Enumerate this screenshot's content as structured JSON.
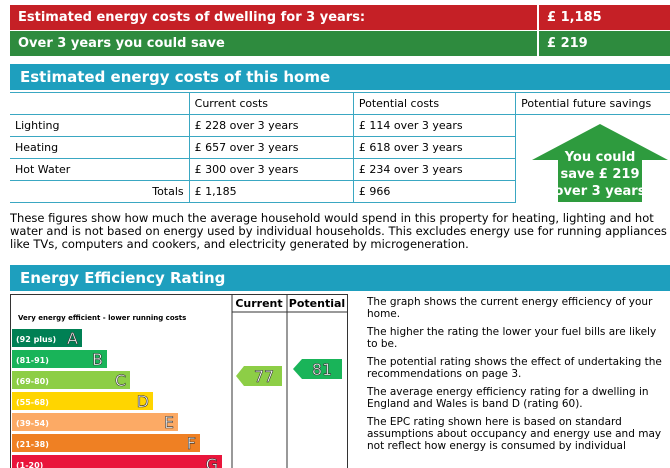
{
  "summary": {
    "cost_label": "Estimated energy costs of dwelling for 3 years:",
    "cost_value": "£ 1,185",
    "save_label": "Over 3 years you could save",
    "save_value": "£ 219"
  },
  "costs": {
    "title": "Estimated energy costs of this home",
    "columns": [
      "Current costs",
      "Potential costs",
      "Potential future savings"
    ],
    "rows": [
      [
        "Lighting",
        "£ 228 over 3 years",
        "£ 114 over 3 years"
      ],
      [
        "Heating",
        "£ 657 over 3 years",
        "£ 618 over 3 years"
      ],
      [
        "Hot Water",
        "£ 300 over 3 years",
        "£ 234 over 3 years"
      ]
    ],
    "totals": [
      "Totals",
      "£ 1,185",
      "£ 966"
    ],
    "savings_note": [
      "You could",
      "save £ 219",
      "over 3 years"
    ],
    "note": "These figures show how much the average household would spend in this property for heating, lighting and hot water and is not based on energy used by individual households. This excludes energy use for running appliances like TVs, computers and cookers, and electricity generated by microgeneration."
  },
  "rating": {
    "title": "Energy Efficiency Rating",
    "columns": [
      "Current",
      "Potential"
    ],
    "top_note": "Very energy efficient - lower running costs",
    "bands": [
      {
        "range": "(92 plus)",
        "letter": "A"
      },
      {
        "range": "(81-91)",
        "letter": "B"
      },
      {
        "range": "(69-80)",
        "letter": "C"
      },
      {
        "range": "(55-68)",
        "letter": "D"
      },
      {
        "range": "(39-54)",
        "letter": "E"
      },
      {
        "range": "(21-38)",
        "letter": "F"
      },
      {
        "range": "(1-20)",
        "letter": "G"
      }
    ],
    "current": "77",
    "potential": "81",
    "notes": [
      "The graph shows the current energy efficiency of your home.",
      "The higher the rating the lower your fuel bills are likely to be.",
      "The potential rating shows the effect of undertaking the recommendations on page 3.",
      "The average energy efficiency rating for a dwelling in England and Wales is band D (rating 60).",
      "The EPC rating shown here is based on standard assumptions about occupancy and energy use and may not reflect how energy is consumed by individual"
    ]
  }
}
